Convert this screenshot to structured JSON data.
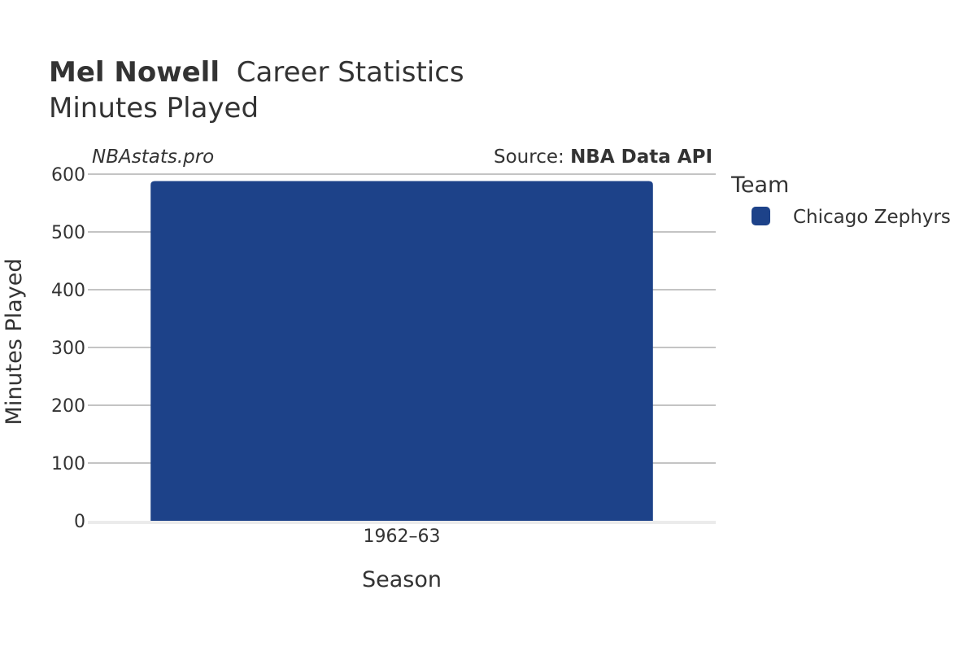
{
  "chart_data": {
    "type": "bar",
    "title_bold": "Mel Nowell",
    "title_rest": "Career Statistics",
    "subtitle": "Minutes Played",
    "watermark": "NBAstats.pro",
    "source_prefix": "Source: ",
    "source_name": "NBA Data API",
    "xlabel": "Season",
    "ylabel": "Minutes Played",
    "categories": [
      "1962–63"
    ],
    "series": [
      {
        "name": "Chicago Zephyrs",
        "values": [
          588
        ],
        "color": "#1d4289"
      }
    ],
    "ylim": [
      0,
      600
    ],
    "yticks": [
      0,
      100,
      200,
      300,
      400,
      500,
      600
    ],
    "grid": true,
    "legend": {
      "title": "Team",
      "placement": "right"
    }
  }
}
